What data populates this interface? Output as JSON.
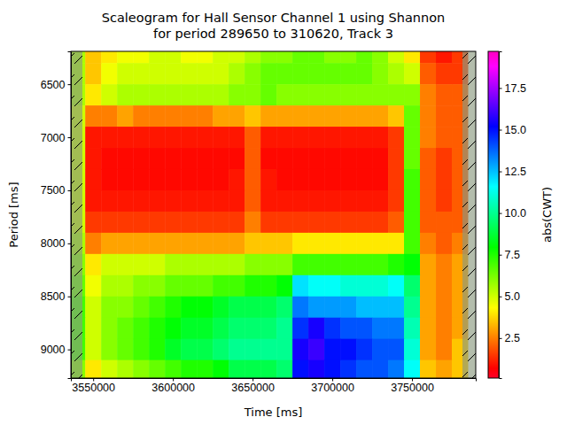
{
  "chart_data": {
    "type": "heatmap",
    "title": "Scaleogram for Hall Sensor Channel 1 using Shannon\nfor period 289650 to 310620, Track 3",
    "x_label": "Time [ms]",
    "y_label": "Period [ms]",
    "x": [
      3540000,
      3550000,
      3560000,
      3570000,
      3580000,
      3590000,
      3600000,
      3610000,
      3620000,
      3630000,
      3640000,
      3650000,
      3660000,
      3670000,
      3680000,
      3690000,
      3700000,
      3710000,
      3720000,
      3730000,
      3740000,
      3750000,
      3760000,
      3770000,
      3780000
    ],
    "y": [
      6200,
      6400,
      6600,
      6800,
      7000,
      7200,
      7400,
      7600,
      7800,
      8000,
      8200,
      8400,
      8600,
      8800,
      9000,
      9200
    ],
    "z": [
      [
        5.5,
        3.5,
        4.0,
        4.5,
        4.5,
        5.0,
        5.0,
        4.5,
        4.5,
        5.0,
        5.0,
        5.5,
        6.0,
        6.0,
        6.5,
        6.5,
        6.0,
        6.0,
        6.5,
        6.0,
        5.0,
        4.0,
        1.5,
        1.0,
        1.5
      ],
      [
        5.5,
        3.5,
        4.5,
        5.0,
        5.0,
        5.0,
        5.0,
        5.0,
        5.0,
        5.0,
        5.5,
        6.0,
        6.5,
        6.5,
        6.5,
        6.5,
        6.5,
        6.5,
        6.5,
        6.0,
        5.5,
        5.0,
        2.0,
        1.5,
        1.5
      ],
      [
        5.5,
        4.0,
        5.0,
        5.5,
        5.5,
        5.5,
        5.5,
        5.5,
        5.5,
        5.5,
        6.0,
        6.0,
        6.5,
        6.0,
        6.0,
        6.0,
        6.0,
        6.0,
        6.0,
        6.0,
        6.0,
        6.0,
        2.5,
        2.0,
        2.0
      ],
      [
        5.0,
        2.5,
        2.5,
        3.0,
        2.5,
        2.5,
        2.5,
        2.5,
        2.5,
        3.0,
        3.0,
        3.5,
        3.0,
        3.0,
        3.0,
        3.0,
        3.0,
        3.0,
        3.0,
        3.0,
        3.5,
        6.5,
        2.5,
        2.0,
        2.0
      ],
      [
        5.0,
        1.0,
        1.0,
        1.0,
        1.0,
        1.0,
        1.0,
        1.0,
        1.0,
        1.0,
        1.0,
        2.0,
        1.0,
        1.0,
        1.0,
        1.0,
        1.0,
        1.0,
        1.0,
        1.0,
        1.5,
        6.5,
        2.5,
        2.0,
        2.0
      ],
      [
        5.0,
        1.0,
        0.8,
        0.8,
        0.8,
        0.8,
        0.8,
        0.8,
        0.8,
        0.8,
        0.8,
        2.0,
        0.8,
        0.8,
        0.8,
        0.8,
        0.8,
        0.8,
        0.8,
        0.8,
        1.5,
        6.5,
        2.0,
        1.5,
        2.0
      ],
      [
        5.0,
        1.0,
        0.8,
        0.8,
        0.8,
        0.8,
        0.8,
        0.8,
        0.8,
        0.8,
        1.0,
        2.0,
        1.0,
        0.8,
        0.8,
        0.8,
        0.8,
        0.8,
        0.8,
        0.8,
        1.5,
        7.0,
        2.0,
        1.5,
        2.0
      ],
      [
        5.0,
        1.0,
        1.0,
        1.0,
        1.0,
        1.0,
        1.0,
        1.0,
        1.0,
        1.0,
        1.0,
        2.0,
        1.0,
        1.0,
        1.0,
        1.0,
        1.0,
        1.0,
        1.0,
        1.0,
        1.5,
        7.0,
        2.0,
        1.5,
        2.0
      ],
      [
        5.0,
        1.5,
        1.5,
        1.5,
        1.5,
        1.5,
        1.5,
        1.5,
        1.5,
        1.5,
        1.5,
        2.5,
        1.5,
        1.5,
        1.5,
        1.5,
        1.5,
        1.5,
        1.5,
        1.5,
        2.0,
        7.0,
        2.0,
        2.0,
        2.0
      ],
      [
        5.5,
        2.5,
        3.0,
        3.0,
        3.0,
        3.0,
        3.0,
        3.0,
        3.0,
        3.0,
        3.0,
        3.5,
        3.5,
        3.5,
        4.0,
        4.0,
        4.0,
        4.0,
        4.0,
        4.0,
        4.0,
        7.0,
        2.5,
        2.0,
        2.5
      ],
      [
        6.0,
        4.0,
        5.0,
        5.0,
        5.0,
        5.0,
        5.5,
        5.5,
        5.5,
        5.5,
        5.5,
        6.0,
        6.0,
        6.0,
        7.0,
        7.0,
        7.0,
        7.0,
        7.0,
        7.0,
        7.5,
        8.0,
        3.0,
        2.5,
        3.0
      ],
      [
        6.5,
        4.5,
        5.5,
        5.5,
        6.0,
        6.0,
        6.5,
        6.5,
        6.5,
        7.0,
        7.0,
        7.5,
        7.5,
        8.0,
        12.0,
        11.5,
        11.5,
        11.0,
        11.0,
        11.0,
        11.5,
        9.5,
        3.0,
        2.5,
        3.0
      ],
      [
        7.0,
        5.0,
        6.0,
        6.0,
        6.5,
        7.0,
        7.5,
        8.0,
        8.0,
        8.5,
        9.0,
        9.0,
        9.0,
        9.5,
        13.5,
        13.0,
        13.0,
        13.0,
        12.5,
        12.5,
        12.5,
        10.0,
        3.0,
        2.5,
        3.0
      ],
      [
        7.0,
        5.0,
        6.0,
        6.5,
        7.0,
        7.5,
        8.0,
        8.5,
        8.5,
        9.0,
        9.5,
        9.5,
        9.5,
        10.0,
        14.5,
        15.5,
        14.5,
        14.0,
        14.0,
        13.5,
        13.5,
        10.5,
        3.0,
        2.5,
        3.0
      ],
      [
        7.0,
        5.0,
        6.0,
        6.5,
        7.0,
        7.5,
        8.5,
        9.0,
        9.0,
        9.5,
        10.0,
        10.0,
        10.0,
        10.0,
        15.5,
        16.0,
        15.0,
        15.0,
        14.5,
        14.0,
        14.0,
        11.0,
        3.0,
        2.5,
        3.5
      ],
      [
        6.0,
        4.0,
        5.0,
        5.5,
        6.0,
        6.5,
        7.0,
        7.5,
        7.5,
        8.0,
        9.0,
        9.0,
        9.0,
        9.5,
        15.0,
        15.5,
        15.0,
        14.5,
        14.0,
        14.0,
        13.5,
        11.5,
        3.5,
        3.0,
        3.5
      ]
    ],
    "xlim": [
      3536000,
      3790000
    ],
    "xticks": [
      3550000,
      3600000,
      3650000,
      3700000,
      3750000
    ],
    "ylim": [
      9270,
      6190
    ],
    "yticks": [
      6500,
      7000,
      7500,
      8000,
      8500,
      9000
    ],
    "colorbar": {
      "label": "abs(CWT)",
      "range": [
        0.1,
        19.7
      ],
      "ticks": [
        2.5,
        {
          "value": 5,
          "label": "5.0"
        },
        7.5,
        {
          "value": 10,
          "label": "10.0"
        },
        12.5,
        {
          "value": 15,
          "label": "15.0"
        },
        17.5
      ]
    }
  }
}
